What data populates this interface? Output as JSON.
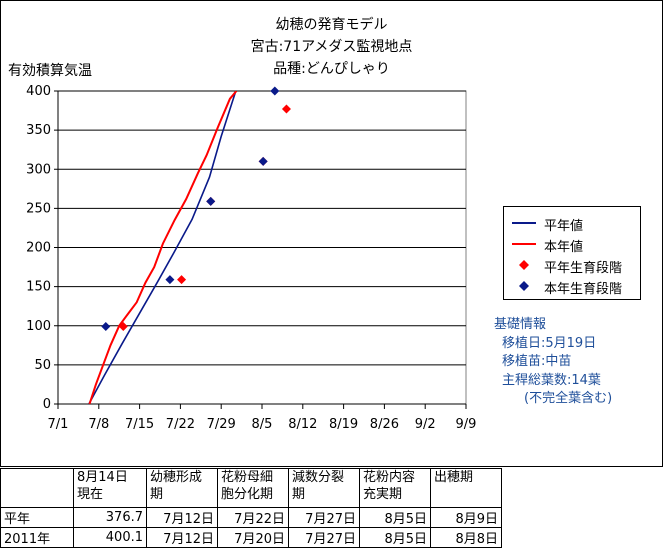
{
  "chart_data": {
    "type": "line",
    "title_lines": [
      "幼穂の発育モデル",
      "宮古:71アメダス監視地点",
      "品種:どんぴしゃり"
    ],
    "ylabel": "有効積算気温",
    "ylim": [
      0,
      400
    ],
    "yticks": [
      0,
      50,
      100,
      150,
      200,
      250,
      300,
      350,
      400
    ],
    "xticks": [
      "7/1",
      "7/8",
      "7/15",
      "7/22",
      "7/29",
      "8/5",
      "8/12",
      "8/19",
      "8/26",
      "9/2",
      "9/9"
    ],
    "x_range_days": [
      0,
      70
    ],
    "series": [
      {
        "name": "平年値",
        "kind": "line",
        "color": "#0a1a8a",
        "x": [
          5.3,
          8,
          11,
          14,
          17,
          20,
          23,
          26,
          28,
          30.5
        ],
        "y": [
          0,
          37,
          77,
          116,
          155,
          195,
          236,
          290,
          342,
          400
        ]
      },
      {
        "name": "本年値",
        "kind": "line",
        "color": "#ff0000",
        "x": [
          5.4,
          6.5,
          7.5,
          9,
          10.5,
          12,
          13.5,
          15,
          16.5,
          18,
          20,
          22,
          24,
          25.5,
          27.5,
          29.5,
          30.6
        ],
        "y": [
          0,
          25,
          45,
          75,
          100,
          115,
          130,
          155,
          175,
          205,
          235,
          262,
          295,
          318,
          355,
          390,
          400
        ]
      },
      {
        "name": "平年生育段階",
        "kind": "marker",
        "color": "#ff0000",
        "x": [
          11.2,
          21.2,
          26.2,
          35.2,
          39.2
        ],
        "y": [
          99,
          159,
          259,
          310,
          377
        ]
      },
      {
        "name": "本年生育段階",
        "kind": "marker",
        "color": "#0a1a8a",
        "x": [
          8.2,
          19.2,
          26.2,
          35.2,
          37.2
        ],
        "y": [
          99,
          159,
          259,
          310,
          400
        ]
      }
    ],
    "grid": "horizontal",
    "legend_position": "right"
  },
  "info": {
    "heading": "基礎情報",
    "lines": [
      "移植日:5月19日",
      "移植苗:中苗",
      "主稈総葉数:14葉",
      "(不完全葉含む)"
    ]
  },
  "table": {
    "headers": [
      "",
      "8月14日\n現在",
      "幼穂形成\n期",
      "花粉母細\n胞分化期",
      "減数分裂\n期",
      "花粉内容\n充実期",
      "出穂期"
    ],
    "rows": [
      [
        "平年",
        "376.7",
        "7月12日",
        "7月22日",
        "7月27日",
        "8月5日",
        "8月9日"
      ],
      [
        "2011年",
        "400.1",
        "7月12日",
        "7月20日",
        "7月27日",
        "8月5日",
        "8月8日"
      ]
    ]
  }
}
